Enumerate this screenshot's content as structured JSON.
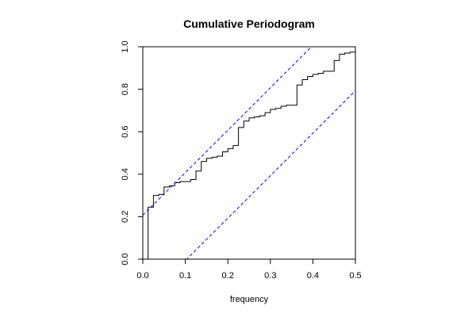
{
  "chart_data": {
    "type": "line",
    "title": "Cumulative Periodogram",
    "xlabel": "frequency",
    "ylabel": "",
    "xlim": [
      0.0,
      0.5
    ],
    "ylim": [
      0.0,
      1.0
    ],
    "xticks": [
      "0.0",
      "0.1",
      "0.2",
      "0.3",
      "0.4",
      "0.5"
    ],
    "yticks": [
      "0.0",
      "0.2",
      "0.4",
      "0.6",
      "0.8",
      "1.0"
    ],
    "grid": false,
    "legend": "none",
    "series": [
      {
        "style": "step",
        "color": "#000000",
        "x": [
          0.0125,
          0.0125,
          0.025,
          0.0375,
          0.05,
          0.0625,
          0.075,
          0.0875,
          0.1,
          0.1125,
          0.125,
          0.1375,
          0.15,
          0.1625,
          0.175,
          0.1875,
          0.2,
          0.2125,
          0.225,
          0.2375,
          0.25,
          0.2625,
          0.275,
          0.2875,
          0.3,
          0.3125,
          0.325,
          0.3375,
          0.35,
          0.3625,
          0.375,
          0.3875,
          0.4,
          0.4125,
          0.425,
          0.4375,
          0.45,
          0.4625,
          0.475,
          0.4875,
          0.5
        ],
        "y": [
          0.0,
          0.245,
          0.3,
          0.305,
          0.34,
          0.345,
          0.36,
          0.365,
          0.365,
          0.375,
          0.415,
          0.46,
          0.475,
          0.48,
          0.485,
          0.505,
          0.52,
          0.535,
          0.62,
          0.65,
          0.665,
          0.67,
          0.675,
          0.69,
          0.705,
          0.71,
          0.72,
          0.725,
          0.725,
          0.82,
          0.845,
          0.86,
          0.87,
          0.875,
          0.885,
          0.885,
          0.935,
          0.965,
          0.97,
          0.975,
          0.99
        ]
      },
      {
        "style": "dashed",
        "color": "#0000ff",
        "x": [
          0.0,
          0.5
        ],
        "y": [
          0.207,
          1.207
        ]
      },
      {
        "style": "dashed",
        "color": "#0000ff",
        "x": [
          0.0,
          0.5
        ],
        "y": [
          -0.207,
          0.793
        ]
      }
    ]
  }
}
